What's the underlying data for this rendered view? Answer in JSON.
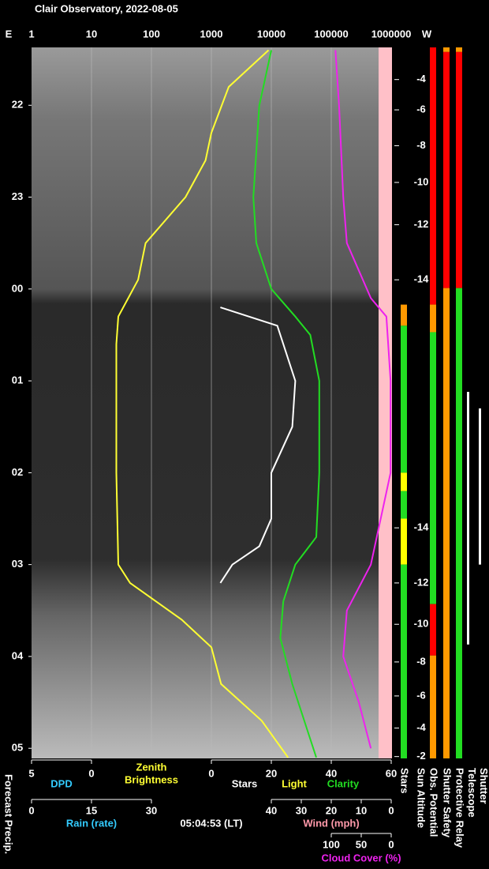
{
  "chart_data": {
    "type": "line",
    "title": "Clair Observatory, 2022-08-05",
    "left_label": "E",
    "right_label": "W",
    "xscale": "log",
    "xlim": [
      1,
      1000000
    ],
    "xticks": [
      1,
      10,
      100,
      1000,
      10000,
      100000,
      1000000
    ],
    "grid": true,
    "ylim": [
      21.37,
      29.11
    ],
    "yticks": [
      22,
      23,
      {
        "value": 24,
        "label": "00"
      },
      {
        "value": 25,
        "label": "01"
      },
      {
        "value": 26,
        "label": "02"
      },
      {
        "value": 27,
        "label": "03"
      },
      {
        "value": 28,
        "label": "04"
      },
      {
        "value": 29,
        "label": "05"
      }
    ],
    "series": [
      {
        "axis": "brightness",
        "color": "#ffff33",
        "times": [
          21.4,
          21.8,
          22.3,
          22.6,
          23.0,
          23.5,
          23.9,
          24.3,
          24.6,
          25.0,
          26.0,
          27.0,
          27.2,
          27.6,
          27.9,
          28.3,
          28.7,
          29.1
        ],
        "values": [
          9000,
          1950,
          1000,
          800,
          370,
          80,
          60,
          28,
          26,
          26,
          26,
          28,
          44,
          320,
          1000,
          1450,
          6900,
          19000
        ]
      },
      {
        "axis": "clarity",
        "color": "#22dd22",
        "times": [
          21.4,
          22.0,
          23.0,
          23.5,
          24.0,
          24.3,
          24.5,
          25.0,
          26.0,
          26.7,
          27.0,
          27.4,
          27.8,
          28.3,
          28.8,
          29.1
        ],
        "values": [
          20,
          16,
          14,
          15,
          20,
          28,
          33,
          36,
          36,
          35,
          28,
          24,
          23,
          27,
          32,
          35
        ]
      },
      {
        "axis": "clarity",
        "color": "#ffffff",
        "times": [
          24.2,
          24.4,
          25.0,
          25.5,
          26.0,
          26.5,
          26.8,
          27.0,
          27.2
        ],
        "values": [
          3,
          22,
          28,
          27,
          20,
          20,
          16,
          7,
          3
        ]
      },
      {
        "axis": "cloud",
        "color": "#ee22ee",
        "times": [
          21.4,
          22.0,
          23.0,
          23.5,
          24.1,
          24.3,
          25.0,
          26.0,
          27.0,
          27.5,
          28.0,
          28.5,
          29.0
        ],
        "values": [
          93,
          87,
          80,
          74,
          34,
          8,
          1,
          1,
          34,
          74,
          80,
          54,
          34
        ]
      }
    ],
    "dpd_axis": {
      "title": "DPD",
      "lim": [
        5,
        0
      ],
      "ticks": [
        5,
        0
      ]
    },
    "clarity_axis": {
      "lim": [
        0,
        60
      ],
      "ticks": [
        0,
        20,
        40,
        60
      ]
    },
    "rain_axis": {
      "title": "Rain (rate)",
      "lim": [
        0,
        30
      ],
      "ticks": [
        0,
        15,
        30
      ]
    },
    "wind_axis": {
      "title": "Wind (mph)",
      "lim": [
        40,
        0
      ],
      "ticks": [
        40,
        30,
        20,
        10,
        0
      ]
    },
    "cloud_axis": {
      "title": "Cloud Cover (%)",
      "lim": [
        100,
        0
      ],
      "ticks": [
        100,
        50,
        0
      ]
    },
    "brightness_title": [
      "Zenith",
      "Brightness"
    ],
    "stars_title": "Stars",
    "light_title": "Light",
    "clarity_title": "Clarity",
    "timestamp": "05:04:53 (LT)",
    "precip_title": "Forecast Precip.",
    "sun_altitude": {
      "title": "Sun Altitude",
      "times": [
        21.72,
        22.05,
        22.44,
        22.84,
        23.3,
        23.9,
        26.6,
        27.2,
        27.65,
        28.06,
        28.43,
        28.78,
        29.09
      ],
      "labels": [
        -4,
        -6,
        -8,
        -10,
        -12,
        -14,
        -14,
        -12,
        -10,
        -8,
        -6,
        -4,
        -2
      ]
    },
    "status_bars": [
      {
        "title": "Stars",
        "segments": [
          {
            "from": 24.17,
            "to": 24.4,
            "color": "#ff9900"
          },
          {
            "from": 24.4,
            "to": 26.0,
            "color": "#22dd22"
          },
          {
            "from": 26.0,
            "to": 26.2,
            "color": "#ffff00"
          },
          {
            "from": 26.2,
            "to": 26.5,
            "color": "#22dd22"
          },
          {
            "from": 26.5,
            "to": 27.0,
            "color": "#ffff00"
          },
          {
            "from": 27.0,
            "to": 29.11,
            "color": "#22dd22"
          }
        ]
      },
      {
        "title": "Obs. Potential",
        "segments": [
          {
            "from": 21.37,
            "to": 24.17,
            "color": "#ff0000"
          },
          {
            "from": 24.17,
            "to": 24.47,
            "color": "#ff9900"
          },
          {
            "from": 24.47,
            "to": 27.43,
            "color": "#22dd22"
          },
          {
            "from": 27.43,
            "to": 27.99,
            "color": "#ff0000"
          },
          {
            "from": 27.99,
            "to": 29.11,
            "color": "#ff9900"
          }
        ]
      },
      {
        "title": "Shutter Safety",
        "segments": [
          {
            "from": 21.37,
            "to": 21.42,
            "color": "#ff9900"
          },
          {
            "from": 21.42,
            "to": 23.99,
            "color": "#ff0000"
          },
          {
            "from": 23.99,
            "to": 29.11,
            "color": "#ff9900"
          }
        ]
      },
      {
        "title": "Protective Relay",
        "segments": [
          {
            "from": 21.37,
            "to": 21.42,
            "color": "#ff9900"
          },
          {
            "from": 21.42,
            "to": 23.99,
            "color": "#ff0000"
          },
          {
            "from": 23.99,
            "to": 29.11,
            "color": "#22dd22"
          }
        ]
      },
      {
        "title": "Telescope",
        "segments": [
          {
            "from": 25.12,
            "to": 27.87,
            "color": "#ffffff"
          }
        ]
      },
      {
        "title": "Shutter",
        "segments": [
          {
            "from": 25.3,
            "to": 27.0,
            "color": "#ffffff"
          }
        ]
      }
    ]
  }
}
